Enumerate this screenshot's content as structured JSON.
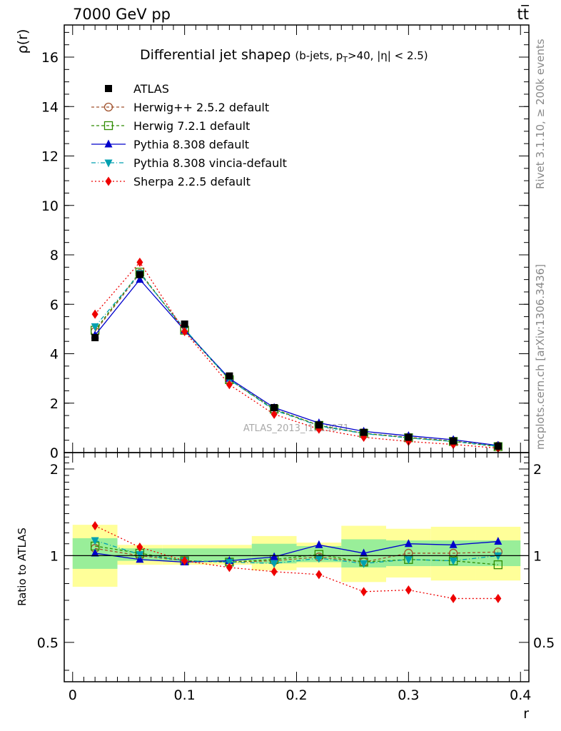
{
  "header": {
    "left": "7000 GeV pp",
    "right": "tt̅"
  },
  "side_labels": {
    "rivet": "Rivet 3.1.10, ≥ 200k events",
    "mcplots": "mcplots.cern.ch [arXiv:1306.3436]"
  },
  "watermark": "ATLAS_2013_I1219071",
  "chart_data": {
    "type": "line",
    "title": "Differential jet shapeρ",
    "title_suffix": "(b-jets, p",
    "title_sub": "T",
    "title_tail": ">40, |η| < 2.5)",
    "xlabel": "r",
    "ylabel": "ρ(r)",
    "ratio_ylabel": "Ratio to ATLAS",
    "xlim": [
      -0.0075,
      0.4075
    ],
    "ylim": [
      0,
      17.3
    ],
    "ratio_ylim": [
      0.365,
      2.28
    ],
    "x": [
      0.02,
      0.06,
      0.1,
      0.14,
      0.18,
      0.22,
      0.26,
      0.3,
      0.34,
      0.38
    ],
    "x_ticks": [
      0,
      0.1,
      0.2,
      0.3,
      0.4
    ],
    "x_tick_labels": [
      "0",
      "0.1",
      "0.2",
      "0.3",
      "0.4"
    ],
    "y_ticks": [
      0,
      2,
      4,
      6,
      8,
      10,
      12,
      14,
      16
    ],
    "y_tick_labels": [
      "0",
      "2",
      "4",
      "6",
      "8",
      "10",
      "12",
      "14",
      "16"
    ],
    "ratio_ticks": [
      0.5,
      1,
      2
    ],
    "ratio_tick_labels": [
      "0.5",
      "1",
      "2"
    ],
    "data": {
      "name": "ATLAS",
      "values": [
        4.65,
        7.2,
        5.2,
        3.1,
        1.82,
        1.12,
        0.82,
        0.62,
        0.47,
        0.26
      ]
    },
    "ratio_bands": {
      "yellow": [
        [
          0.78,
          1.28
        ],
        [
          0.93,
          1.09
        ],
        [
          0.93,
          1.09
        ],
        [
          0.93,
          1.09
        ],
        [
          0.89,
          1.17
        ],
        [
          0.91,
          1.11
        ],
        [
          0.81,
          1.27
        ],
        [
          0.84,
          1.24
        ],
        [
          0.82,
          1.26
        ],
        [
          0.82,
          1.26
        ]
      ],
      "green": [
        [
          0.9,
          1.15
        ],
        [
          0.96,
          1.06
        ],
        [
          0.96,
          1.06
        ],
        [
          0.96,
          1.06
        ],
        [
          0.94,
          1.1
        ],
        [
          0.95,
          1.08
        ],
        [
          0.91,
          1.14
        ],
        [
          0.92,
          1.13
        ],
        [
          0.92,
          1.13
        ],
        [
          0.92,
          1.13
        ]
      ]
    },
    "series": [
      {
        "name": "Herwig++ 2.5.2 default",
        "color": "#a0522d",
        "dash": "4,3",
        "marker": "circle-open",
        "values": [
          4.9,
          7.25,
          5.0,
          2.95,
          1.75,
          1.1,
          0.78,
          0.62,
          0.47,
          0.27
        ],
        "ratio": [
          1.06,
          1.0,
          0.96,
          0.95,
          0.96,
          0.99,
          0.95,
          1.02,
          1.02,
          1.03
        ]
      },
      {
        "name": "Herwig 7.2.1 default",
        "color": "#2e8b00",
        "dash": "4,3",
        "marker": "square-open",
        "values": [
          4.95,
          7.3,
          4.95,
          2.95,
          1.76,
          1.1,
          0.78,
          0.6,
          0.45,
          0.24
        ],
        "ratio": [
          1.08,
          1.02,
          0.96,
          0.95,
          0.97,
          1.01,
          0.95,
          0.97,
          0.96,
          0.93
        ]
      },
      {
        "name": "Pythia 8.308 default",
        "color": "#0000cc",
        "dash": "",
        "marker": "triangle-up",
        "values": [
          4.75,
          7.0,
          4.95,
          3.0,
          1.82,
          1.2,
          0.86,
          0.68,
          0.52,
          0.29
        ],
        "ratio": [
          1.02,
          0.97,
          0.95,
          0.96,
          0.99,
          1.09,
          1.02,
          1.1,
          1.09,
          1.12
        ]
      },
      {
        "name": "Pythia 8.308 vincia-default",
        "color": "#00a0b0",
        "dash": "6,3,1,3",
        "marker": "triangle-down",
        "values": [
          5.1,
          7.25,
          5.0,
          2.95,
          1.72,
          1.08,
          0.77,
          0.59,
          0.45,
          0.26
        ],
        "ratio": [
          1.13,
          1.01,
          0.96,
          0.95,
          0.94,
          0.98,
          0.94,
          0.97,
          0.96,
          1.0
        ]
      },
      {
        "name": "Sherpa 2.2.5 default",
        "color": "#ee0000",
        "dash": "2,3",
        "marker": "diamond",
        "values": [
          5.6,
          7.7,
          4.9,
          2.75,
          1.55,
          0.95,
          0.62,
          0.45,
          0.33,
          0.18
        ],
        "ratio": [
          1.27,
          1.07,
          0.96,
          0.91,
          0.88,
          0.86,
          0.75,
          0.76,
          0.71,
          0.71
        ]
      }
    ]
  }
}
